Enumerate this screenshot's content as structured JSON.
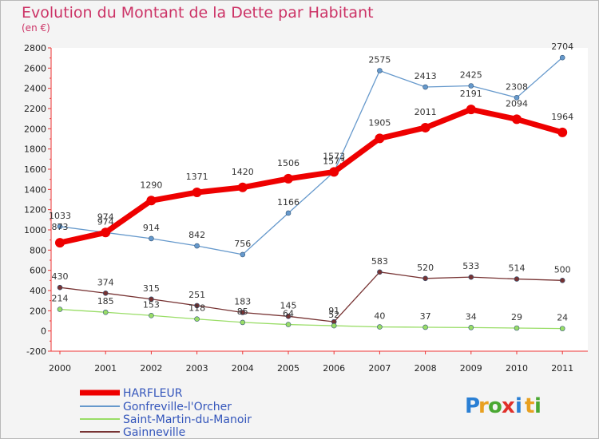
{
  "header": {
    "title": "Evolution du Montant de la Dette par Habitant",
    "subtitle": "(en €)"
  },
  "brand": {
    "letters": [
      "P",
      "r",
      "o",
      "x",
      "i",
      "t",
      "i"
    ],
    "colors": [
      "#2a7fd4",
      "#e8a020",
      "#4aa832",
      "#e0302a",
      "#2a7fd4",
      "#e8a020",
      "#4aa832"
    ]
  },
  "chart_data": {
    "type": "line",
    "title": "Evolution du Montant de la Dette par Habitant",
    "subtitle": "(en €)",
    "x": [
      "2000",
      "2001",
      "2002",
      "2003",
      "2004",
      "2005",
      "2006",
      "2007",
      "2008",
      "2009",
      "2010",
      "2011"
    ],
    "ylim": [
      -200,
      2800
    ],
    "yticks": [
      -200,
      0,
      200,
      400,
      600,
      800,
      1000,
      1200,
      1400,
      1600,
      1800,
      2000,
      2200,
      2400,
      2600,
      2800
    ],
    "grid": false,
    "legend_position": "bottom-left",
    "series": [
      {
        "name": "HARFLEUR",
        "color": "#ee0000",
        "values": [
          873,
          974,
          1290,
          1371,
          1420,
          1506,
          1573,
          1905,
          2011,
          2191,
          2094,
          1964
        ]
      },
      {
        "name": "Gonfreville-l'Orcher",
        "color": "#6699cc",
        "values": [
          1033,
          974,
          914,
          842,
          756,
          1166,
          1573,
          2575,
          2413,
          2425,
          2308,
          2704
        ]
      },
      {
        "name": "Saint-Martin-du-Manoir",
        "color": "#99dd66",
        "values": [
          214,
          185,
          153,
          118,
          85,
          64,
          52,
          40,
          37,
          34,
          29,
          24
        ]
      },
      {
        "name": "Gainneville",
        "color": "#773333",
        "values": [
          430,
          374,
          315,
          251,
          183,
          145,
          91,
          583,
          520,
          533,
          514,
          500
        ]
      }
    ]
  }
}
